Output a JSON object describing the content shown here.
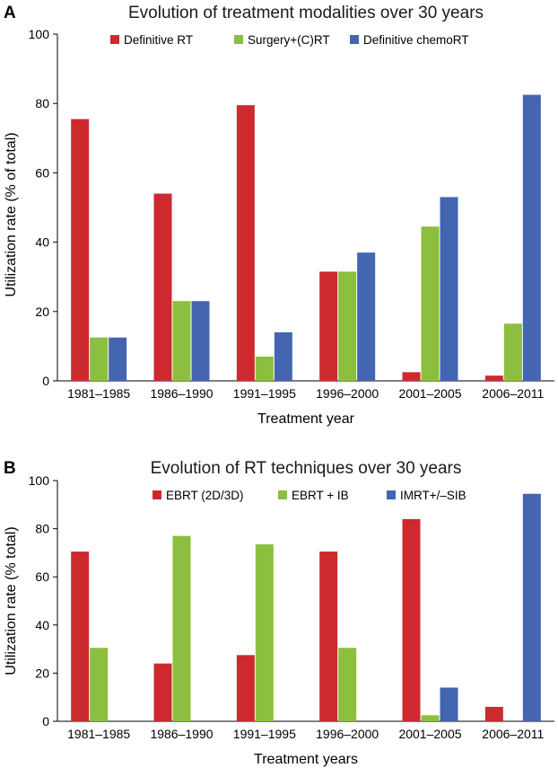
{
  "chart_data": [
    {
      "panel": "A",
      "type": "bar",
      "title": "Evolution of treatment modalities over 30 years",
      "xlabel": "Treatment year",
      "ylabel": "Utilization rate (% of total)",
      "ylim": [
        0,
        100
      ],
      "yticks": [
        "0",
        "20",
        "40",
        "60",
        "80",
        "100"
      ],
      "categories": [
        "1981–1985",
        "1986–1990",
        "1991–1995",
        "1996–2000",
        "2001–2005",
        "2006–2011"
      ],
      "series": [
        {
          "name": "Definitive RT",
          "color": "#cc2a2f",
          "values": [
            75.5,
            54,
            79.5,
            31.5,
            2.5,
            1.5
          ]
        },
        {
          "name": "Surgery+(C)RT",
          "color": "#8cbe3f",
          "values": [
            12.5,
            23,
            7,
            31.5,
            44.5,
            16.5
          ]
        },
        {
          "name": "Definitive chemoRT",
          "color": "#4466b0",
          "values": [
            12.5,
            23,
            14,
            37,
            53,
            82.5
          ]
        }
      ]
    },
    {
      "panel": "B",
      "type": "bar",
      "title": "Evolution of RT techniques over 30 years",
      "xlabel": "Treatment years",
      "ylabel": "Utilization rate (% total)",
      "ylim": [
        0,
        100
      ],
      "yticks": [
        "0",
        "20",
        "40",
        "60",
        "80",
        "100"
      ],
      "categories": [
        "1981–1985",
        "1986–1990",
        "1991–1995",
        "1996–2000",
        "2001–2005",
        "2006–2011"
      ],
      "series": [
        {
          "name": "EBRT (2D/3D)",
          "color": "#cc2a2f",
          "values": [
            70.5,
            24,
            27.5,
            70.5,
            84,
            6
          ]
        },
        {
          "name": "EBRT + IB",
          "color": "#8cbe3f",
          "values": [
            30.5,
            77,
            73.5,
            30.5,
            2.5,
            0
          ]
        },
        {
          "name": "IMRT+/–SIB",
          "color": "#4466b0",
          "values": [
            0,
            0,
            0,
            0,
            14,
            94.5
          ]
        }
      ]
    }
  ]
}
